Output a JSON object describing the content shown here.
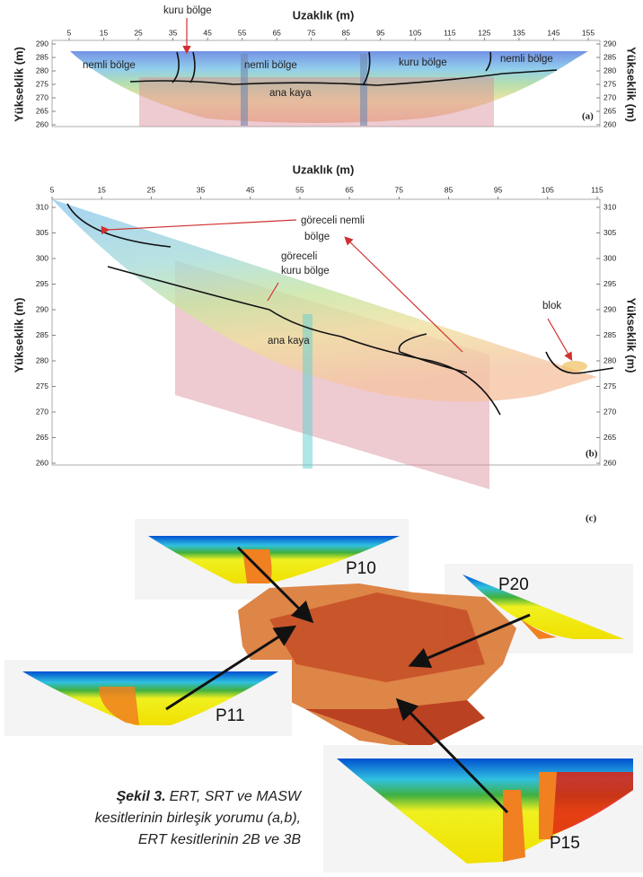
{
  "panel_a": {
    "x_axis_title": "Uzaklık (m)",
    "y_axis_title": "Yükseklik (m)",
    "x_ticks": [
      5,
      15,
      25,
      35,
      45,
      55,
      65,
      75,
      85,
      95,
      105,
      115,
      125,
      135,
      145,
      155
    ],
    "y_ticks": [
      290,
      285,
      280,
      275,
      270,
      265,
      260
    ],
    "annotations": [
      "kuru bölge",
      "nemli bölge",
      "nemli bölge",
      "kuru bölge",
      "nemli bölge",
      "ana kaya"
    ],
    "label": "(a)"
  },
  "panel_b": {
    "x_axis_title": "Uzaklık (m)",
    "y_axis_title": "Yükseklik (m)",
    "x_ticks": [
      5,
      15,
      25,
      35,
      45,
      55,
      65,
      75,
      85,
      95,
      105,
      115
    ],
    "y_ticks": [
      310,
      305,
      300,
      295,
      290,
      285,
      280,
      275,
      270,
      265,
      260
    ],
    "annotations": [
      "göreceli nemli",
      "bölge",
      "göreceli",
      "kuru bölge",
      "blok",
      "ana kaya"
    ],
    "label": "(b)"
  },
  "panel_c": {
    "label": "(c)",
    "profiles": [
      "P10",
      "P20",
      "P11",
      "P15"
    ]
  },
  "caption": {
    "label": "Şekil 3.",
    "lines": [
      "ERT, SRT ve MASW",
      "kesitlerinin birleşik yorumu (a,b),",
      "ERT kesitlerinin 2B ve 3B"
    ]
  }
}
